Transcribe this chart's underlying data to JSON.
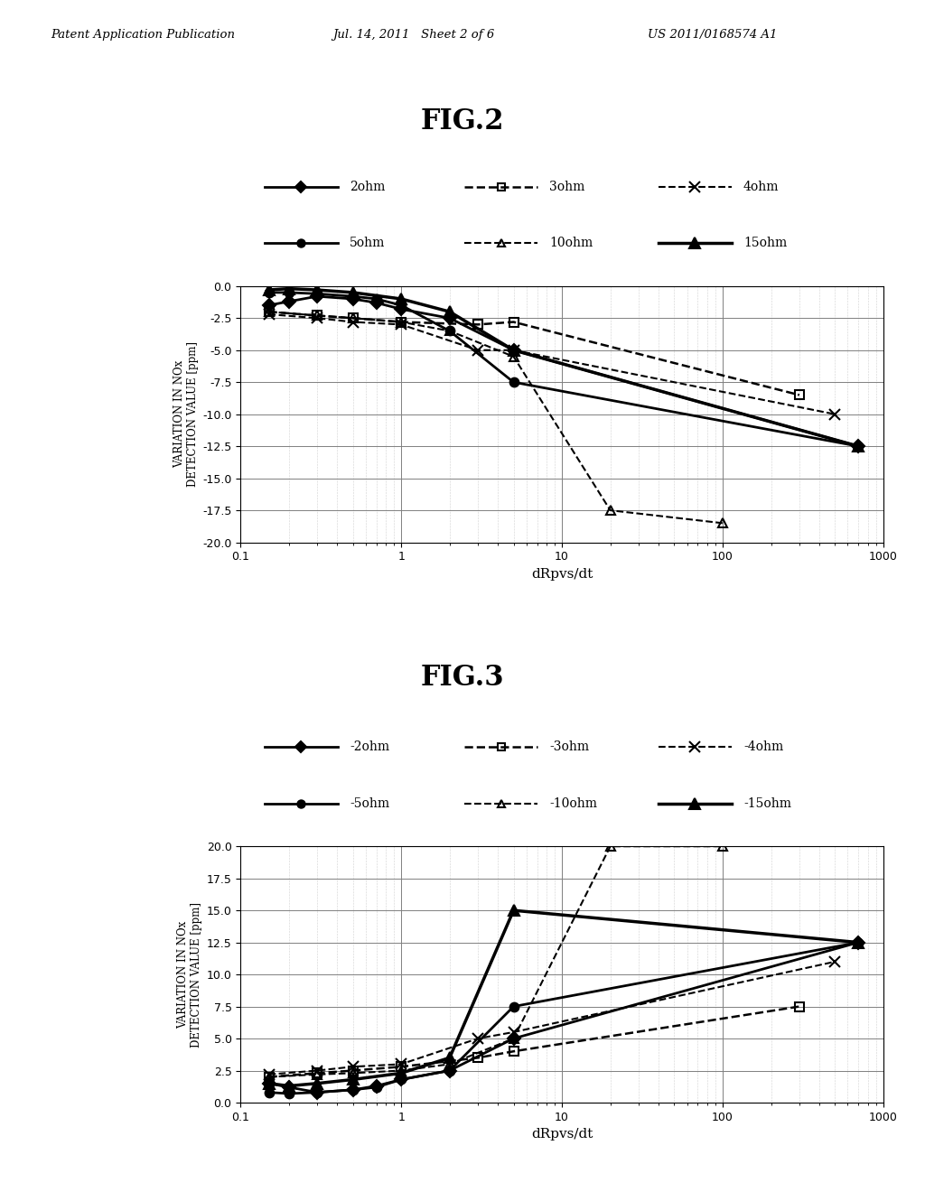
{
  "header_left": "Patent Application Publication",
  "header_center": "Jul. 14, 2011   Sheet 2 of 6",
  "header_right": "US 2011/0168574 A1",
  "fig2_title": "FIG.2",
  "fig3_title": "FIG.3",
  "xlabel": "dRpvs/dt",
  "ylabel_line1": "VARIATION IN NOx",
  "ylabel_line2": "DETECTION VALUE [ppm]",
  "fig2_ylim": [
    -20.0,
    0.0
  ],
  "fig3_ylim": [
    0.0,
    20.0
  ],
  "fig2_yticks": [
    0.0,
    -2.5,
    -5.0,
    -7.5,
    -10.0,
    -12.5,
    -15.0,
    -17.5,
    -20.0
  ],
  "fig3_yticks": [
    0.0,
    2.5,
    5.0,
    7.5,
    10.0,
    12.5,
    15.0,
    17.5,
    20.0
  ],
  "xlim": [
    0.1,
    1000
  ],
  "series": [
    {
      "label2": "2ohm",
      "label3": "-2ohm",
      "x": [
        0.15,
        0.2,
        0.3,
        0.5,
        0.7,
        1.0,
        2.0,
        5.0,
        700.0
      ],
      "y2": [
        -1.5,
        -1.2,
        -0.8,
        -1.0,
        -1.3,
        -1.8,
        -2.5,
        -5.0,
        -12.5
      ],
      "y3": [
        1.5,
        1.2,
        0.8,
        1.0,
        1.3,
        1.8,
        2.5,
        5.0,
        12.5
      ],
      "linestyle": "-",
      "marker": "D",
      "markersize": 7,
      "color": "#000000",
      "linewidth": 2.0,
      "fillstyle": "full"
    },
    {
      "label2": "3ohm",
      "label3": "-3ohm",
      "x": [
        0.15,
        0.3,
        0.5,
        1.0,
        3.0,
        5.0,
        300.0
      ],
      "y2": [
        -2.0,
        -2.3,
        -2.5,
        -2.8,
        -3.0,
        -2.8,
        -8.5
      ],
      "y3": [
        2.0,
        2.3,
        2.5,
        2.8,
        3.5,
        4.0,
        7.5
      ],
      "linestyle": "--",
      "marker": "s",
      "markersize": 7,
      "color": "#000000",
      "linewidth": 1.8,
      "fillstyle": "none"
    },
    {
      "label2": "4ohm",
      "label3": "-4ohm",
      "x": [
        0.15,
        0.3,
        0.5,
        1.0,
        3.0,
        5.0,
        500.0
      ],
      "y2": [
        -2.2,
        -2.5,
        -2.8,
        -3.0,
        -5.0,
        -5.0,
        -10.0
      ],
      "y3": [
        2.2,
        2.5,
        2.8,
        3.0,
        5.0,
        5.5,
        11.0
      ],
      "linestyle": "--",
      "marker": "x",
      "markersize": 9,
      "color": "#000000",
      "linewidth": 1.5,
      "fillstyle": "full"
    },
    {
      "label2": "5ohm",
      "label3": "-5ohm",
      "x": [
        0.15,
        0.2,
        0.3,
        0.5,
        0.7,
        1.0,
        2.0,
        5.0,
        700.0
      ],
      "y2": [
        -0.5,
        -0.5,
        -0.6,
        -0.8,
        -1.0,
        -1.5,
        -3.5,
        -7.5,
        -12.5
      ],
      "y3": [
        0.8,
        0.7,
        0.8,
        1.0,
        1.2,
        1.8,
        2.5,
        7.5,
        12.5
      ],
      "linestyle": "-",
      "marker": "o",
      "markersize": 7,
      "color": "#000000",
      "linewidth": 2.0,
      "fillstyle": "full"
    },
    {
      "label2": "10ohm",
      "label3": "-10ohm",
      "x": [
        0.15,
        0.3,
        0.5,
        1.0,
        2.0,
        5.0,
        20.0,
        100.0
      ],
      "y2": [
        -2.0,
        -2.3,
        -2.5,
        -2.8,
        -3.5,
        -5.5,
        -17.5,
        -18.5
      ],
      "y3": [
        2.0,
        2.2,
        2.3,
        2.5,
        3.0,
        5.0,
        20.0,
        20.0
      ],
      "linestyle": "--",
      "marker": "^",
      "markersize": 7,
      "color": "#000000",
      "linewidth": 1.5,
      "fillstyle": "none"
    },
    {
      "label2": "15ohm",
      "label3": "-15ohm",
      "x": [
        0.15,
        0.2,
        0.3,
        0.5,
        1.0,
        2.0,
        5.0,
        700.0
      ],
      "y2": [
        -0.3,
        -0.2,
        -0.3,
        -0.5,
        -1.0,
        -2.0,
        -5.0,
        -12.5
      ],
      "y3": [
        1.5,
        1.3,
        1.5,
        1.8,
        2.3,
        3.5,
        15.0,
        12.5
      ],
      "linestyle": "-",
      "marker": "^",
      "markersize": 9,
      "color": "#000000",
      "linewidth": 2.5,
      "fillstyle": "full"
    }
  ],
  "background_color": "#ffffff"
}
